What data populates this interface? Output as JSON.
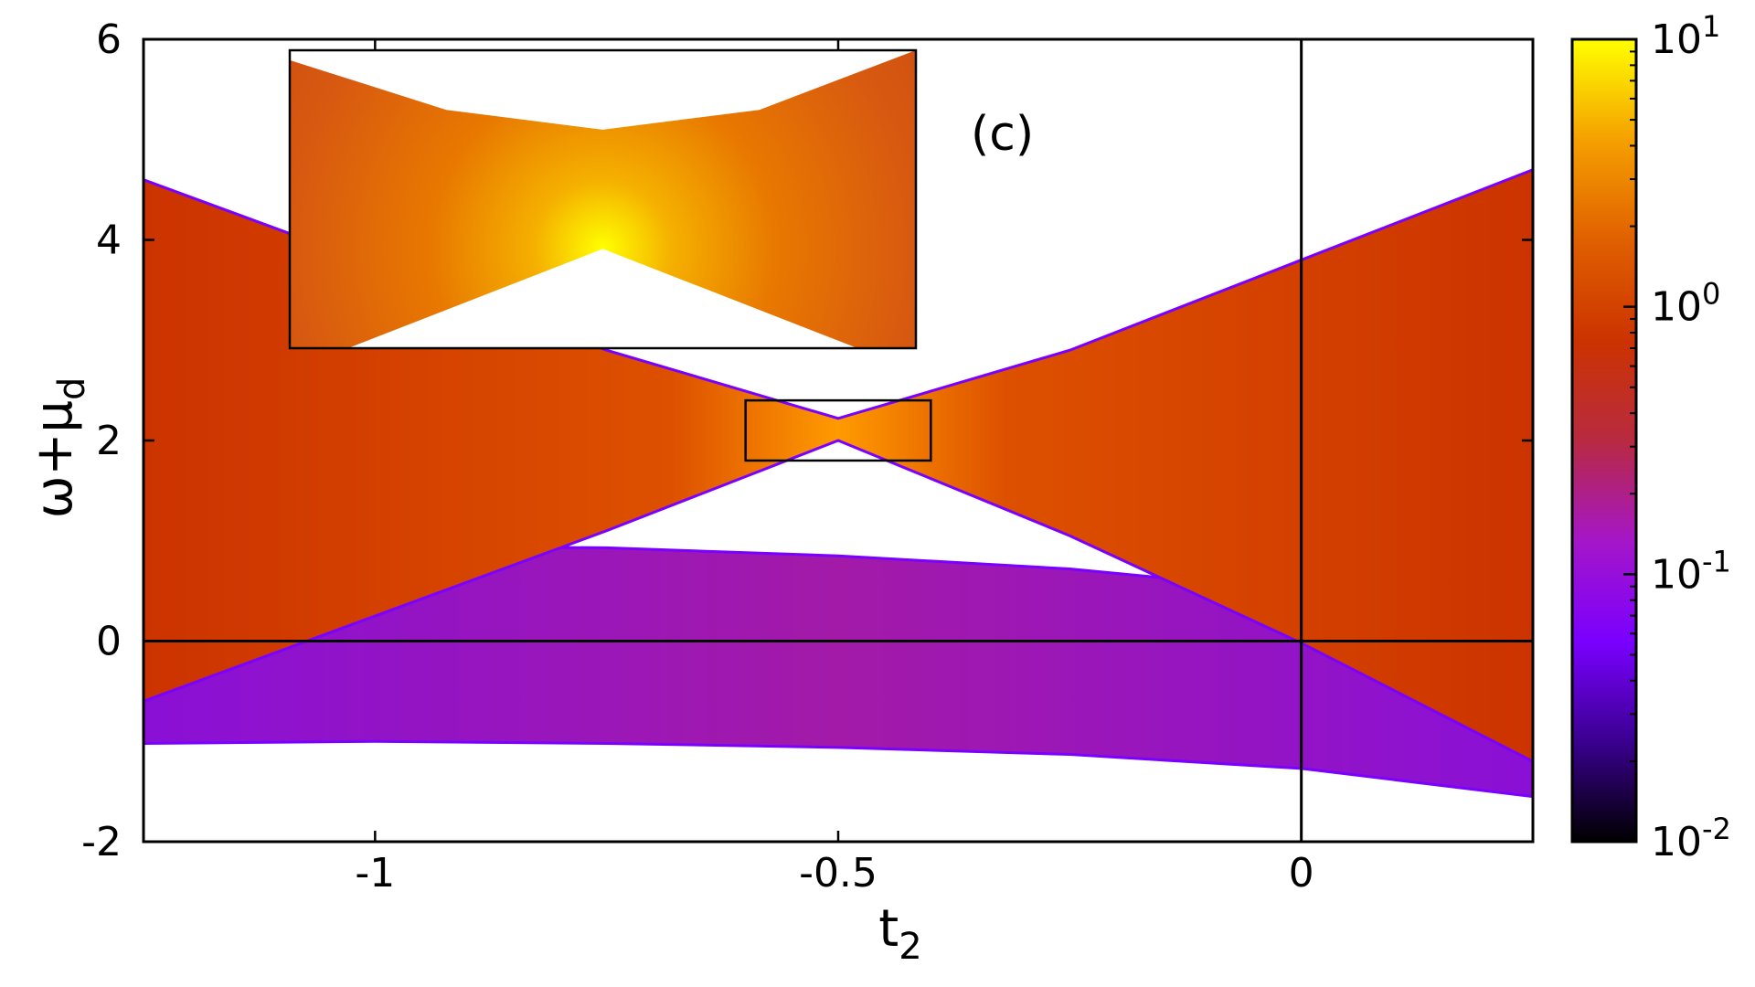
{
  "chart_data": {
    "type": "heatmap",
    "panel_label": "(c)",
    "xlabel": {
      "base": "t",
      "sub": "2"
    },
    "ylabel": {
      "base": "ω+μ",
      "sub": "d"
    },
    "xlim": [
      -1.25,
      0.25
    ],
    "ylim": [
      -2,
      6
    ],
    "x_ticks": [
      {
        "value": -1,
        "label": "-1"
      },
      {
        "value": -0.5,
        "label": "-0.5"
      },
      {
        "value": 0,
        "label": "0"
      }
    ],
    "y_ticks": [
      {
        "value": -2,
        "label": "-2"
      },
      {
        "value": 0,
        "label": "0"
      },
      {
        "value": 2,
        "label": "2"
      },
      {
        "value": 4,
        "label": "4"
      },
      {
        "value": 6,
        "label": "6"
      }
    ],
    "reference_lines": {
      "x": 0,
      "y": 0
    },
    "colorbar": {
      "scale": "log",
      "range": [
        0.01,
        10
      ],
      "ticks": [
        {
          "value": 0.01,
          "base": "10",
          "exp": "-2"
        },
        {
          "value": 0.1,
          "base": "10",
          "exp": "-1"
        },
        {
          "value": 1,
          "base": "10",
          "exp": "0"
        },
        {
          "value": 10,
          "base": "10",
          "exp": "1"
        }
      ],
      "colors": [
        "#000000",
        "#3a0090",
        "#7a00ff",
        "#a516c8",
        "#b82a40",
        "#cc3300",
        "#e06000",
        "#f5a000",
        "#ffff00"
      ]
    },
    "bands": [
      {
        "name": "lower band",
        "t2": [
          -1.25,
          -1.0,
          -0.75,
          -0.5,
          -0.25,
          0.0,
          0.25
        ],
        "lower": [
          -1.02,
          -1.0,
          -1.02,
          -1.06,
          -1.13,
          -1.27,
          -1.55
        ],
        "upper": [
          0.95,
          0.95,
          0.93,
          0.85,
          0.72,
          0.5,
          0.32
        ],
        "colors": [
          "#8a10d6",
          "#a31aa8",
          "#a01aa0"
        ]
      },
      {
        "name": "hourglass band",
        "t2": [
          -1.25,
          -1.0,
          -0.75,
          -0.5,
          -0.25,
          0.0,
          0.25
        ],
        "upper": [
          4.6,
          3.75,
          2.9,
          2.22,
          2.9,
          3.8,
          4.7
        ],
        "lower": [
          -0.6,
          0.25,
          1.1,
          2.0,
          1.05,
          -0.02,
          -1.2
        ],
        "colors": [
          "#cc3300",
          "#dd5000",
          "#ff9a00"
        ]
      }
    ],
    "inset": {
      "xlim": [
        -0.6,
        -0.4
      ],
      "ylim": [
        1.8,
        2.4
      ],
      "upper_edge": [
        [
          -0.6,
          2.38
        ],
        [
          -0.55,
          2.28
        ],
        [
          -0.5,
          2.24
        ],
        [
          -0.45,
          2.28
        ],
        [
          -0.4,
          2.4
        ]
      ],
      "gap_point": [
        -0.5,
        2.0
      ]
    }
  }
}
